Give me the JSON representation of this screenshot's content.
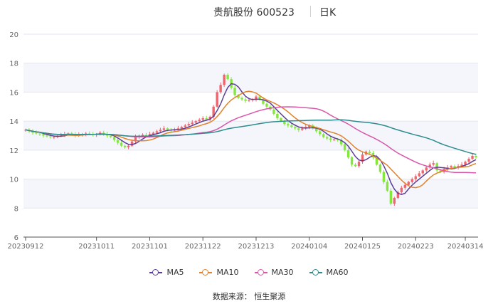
{
  "header": {
    "stock": "贵航股份 600523",
    "period": "日K"
  },
  "source": "数据来源： 恒生聚源",
  "chart_data": {
    "type": "candlestick",
    "ylim": [
      6,
      20
    ],
    "yticks": [
      6,
      8,
      10,
      12,
      14,
      16,
      18,
      20
    ],
    "xticks": [
      "20230912",
      "20231011",
      "20231101",
      "20231122",
      "20231213",
      "20240104",
      "20240125",
      "20240223",
      "20240314"
    ],
    "xtick_index": [
      0,
      20,
      35,
      50,
      65,
      80,
      95,
      110,
      124
    ],
    "up_color": "#f0646e",
    "down_color": "#84e83c",
    "close": [
      13.4,
      13.3,
      13.2,
      13.15,
      13.1,
      13.0,
      12.95,
      12.9,
      12.9,
      13.0,
      13.05,
      13.1,
      13.15,
      13.1,
      13.0,
      13.05,
      13.1,
      13.15,
      13.1,
      13.05,
      13.1,
      13.2,
      13.1,
      13.0,
      12.9,
      12.7,
      12.5,
      12.3,
      12.2,
      12.3,
      12.6,
      12.9,
      13.0,
      13.05,
      13.0,
      13.1,
      13.2,
      13.3,
      13.4,
      13.5,
      13.4,
      13.35,
      13.4,
      13.5,
      13.6,
      13.7,
      13.8,
      13.9,
      14.0,
      14.1,
      14.2,
      14.1,
      14.3,
      15.0,
      16.0,
      16.5,
      17.2,
      16.9,
      16.3,
      15.8,
      15.6,
      15.5,
      15.4,
      15.45,
      15.5,
      15.7,
      15.5,
      15.2,
      15.0,
      14.8,
      14.5,
      14.2,
      14.0,
      13.8,
      13.7,
      13.6,
      13.5,
      13.4,
      13.5,
      13.6,
      13.7,
      13.5,
      13.3,
      13.1,
      12.9,
      12.8,
      12.7,
      12.75,
      12.7,
      12.4,
      12.0,
      11.5,
      11.0,
      10.9,
      11.2,
      11.7,
      11.9,
      11.8,
      11.5,
      11.0,
      10.5,
      9.8,
      9.2,
      8.3,
      8.7,
      9.1,
      9.4,
      9.6,
      9.8,
      10.0,
      10.2,
      10.4,
      10.6,
      10.8,
      11.0,
      11.1,
      10.6,
      10.5,
      10.7,
      10.8,
      10.9,
      10.8,
      10.9,
      11.0,
      11.2,
      11.4,
      11.6,
      11.5
    ]
  },
  "legend": {
    "items": [
      {
        "label": "MA5",
        "color": "#5b3e99"
      },
      {
        "label": "MA10",
        "color": "#e1822c"
      },
      {
        "label": "MA30",
        "color": "#d957a8"
      },
      {
        "label": "MA60",
        "color": "#2e8c8c"
      }
    ]
  }
}
